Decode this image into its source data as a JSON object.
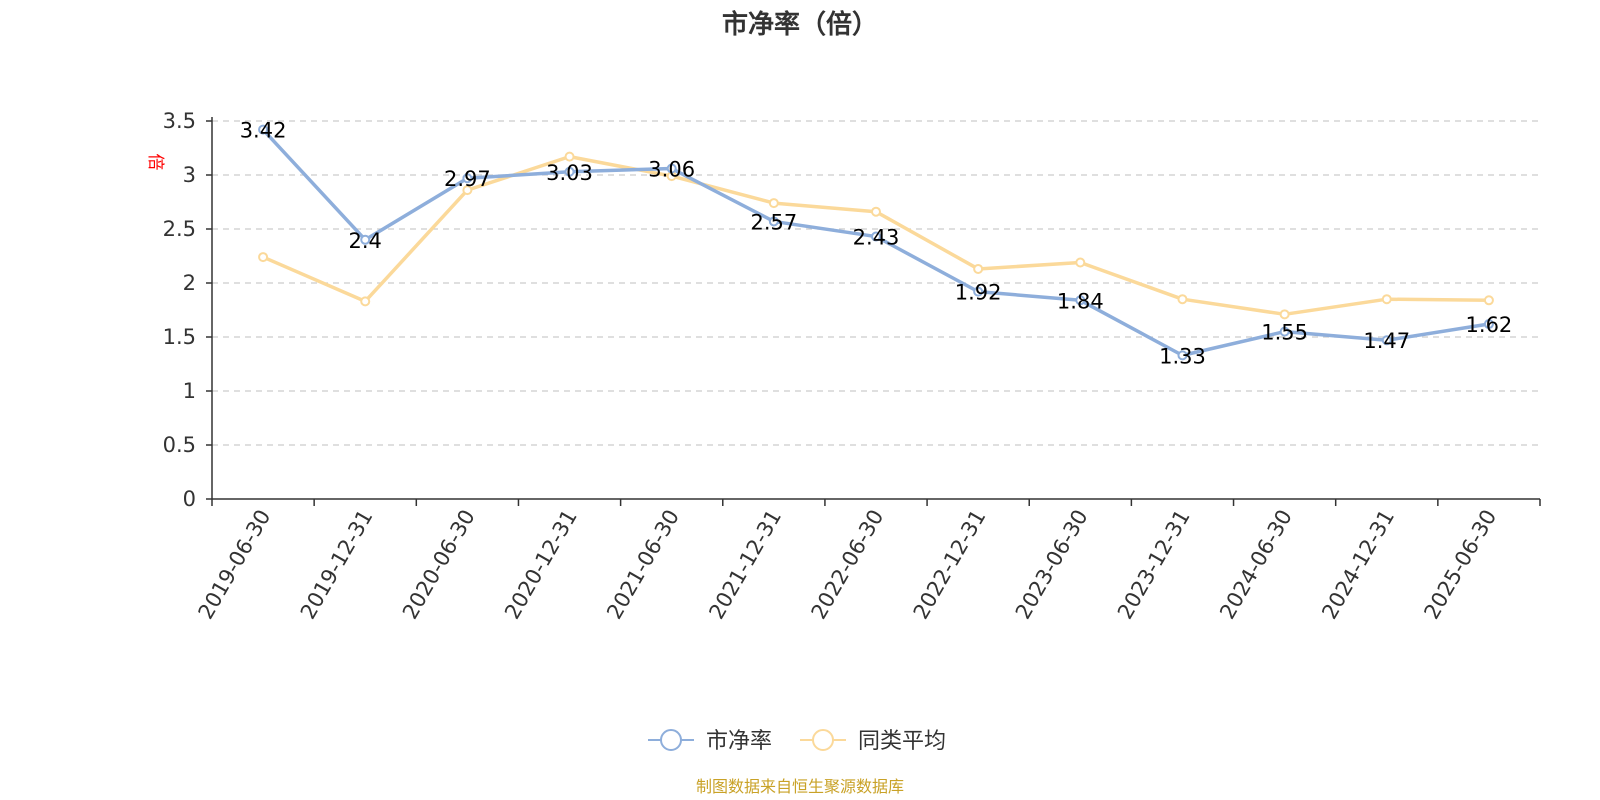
{
  "chart_data": {
    "type": "line",
    "title": "市净率（倍）",
    "ylabel": "倍",
    "ylim": [
      0,
      3.5
    ],
    "yticks": [
      "0",
      "0.5",
      "1",
      "1.5",
      "2",
      "2.5",
      "3",
      "3.5"
    ],
    "categories": [
      "2019-06-30",
      "2019-12-31",
      "2020-06-30",
      "2020-12-31",
      "2021-06-30",
      "2021-12-31",
      "2022-06-30",
      "2022-12-31",
      "2023-06-30",
      "2023-12-31",
      "2024-06-30",
      "2024-12-31",
      "2025-06-30"
    ],
    "grid": true,
    "legend_position": "bottom",
    "series": [
      {
        "name": "市净率",
        "color": "#8eaedb",
        "values": [
          3.42,
          2.4,
          2.97,
          3.03,
          3.06,
          2.57,
          2.43,
          1.92,
          1.84,
          1.33,
          1.55,
          1.47,
          1.62
        ],
        "labels": [
          "3.42",
          "2.4",
          "2.97",
          "3.03",
          "3.06",
          "2.57",
          "2.43",
          "1.92",
          "1.84",
          "1.33",
          "1.55",
          "1.47",
          "1.62"
        ]
      },
      {
        "name": "同类平均",
        "color": "#fbd99a",
        "values": [
          2.24,
          1.83,
          2.86,
          3.17,
          2.99,
          2.74,
          2.66,
          2.13,
          2.19,
          1.85,
          1.71,
          1.85,
          1.84
        ]
      }
    ],
    "source": "制图数据来自恒生聚源数据库"
  }
}
